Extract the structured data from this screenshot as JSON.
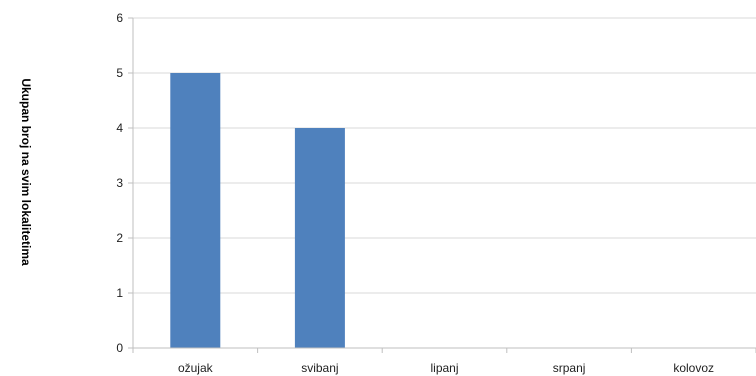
{
  "chart_data": {
    "type": "bar",
    "categories": [
      "ožujak",
      "svibanj",
      "lipanj",
      "srpanj",
      "kolovoz"
    ],
    "values": [
      5,
      4,
      0,
      0,
      0
    ],
    "title": "",
    "xlabel": "",
    "ylabel": "Ukupan broj na svim lokalitetima",
    "ylim": [
      0,
      6
    ],
    "yticks": [
      0,
      1,
      2,
      3,
      4,
      5,
      6
    ],
    "grid": true,
    "legend": "none",
    "bar_color": "#4F81BD",
    "grid_color": "#D9D9D9",
    "axis_color": "#BFBFBF"
  }
}
